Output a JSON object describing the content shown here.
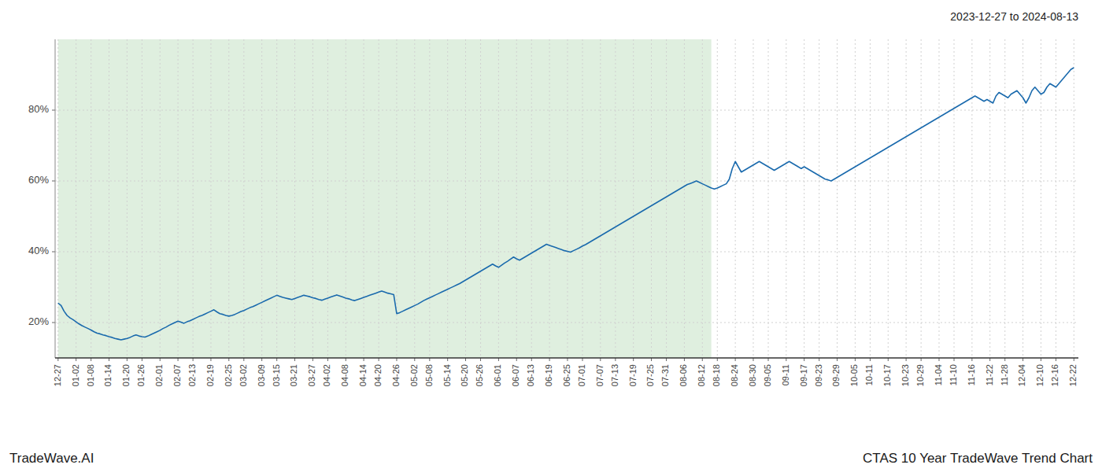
{
  "chart_data": {
    "type": "line",
    "title": "CTAS 10 Year TradeWave Trend Chart",
    "subtitle": "2023-12-27 to 2024-08-13",
    "annotations": [
      "TradeWave.AI"
    ],
    "color": "#1a6aad",
    "grid": true,
    "ylim": [
      10,
      100
    ],
    "yticks": [
      {
        "value": 20,
        "label": "20%"
      },
      {
        "value": 40,
        "label": "40%"
      },
      {
        "value": 60,
        "label": "60%"
      },
      {
        "value": 80,
        "label": "80%"
      }
    ],
    "shade": {
      "from": 0,
      "to": 218,
      "color": "#d4ead4"
    },
    "categories": [
      "12-27",
      null,
      null,
      null,
      null,
      null,
      "01-02",
      null,
      null,
      null,
      null,
      "01-08",
      null,
      null,
      null,
      null,
      null,
      "01-14",
      null,
      null,
      null,
      null,
      null,
      "01-20",
      null,
      null,
      null,
      null,
      "01-26",
      null,
      null,
      null,
      null,
      null,
      "02-01",
      null,
      null,
      null,
      null,
      null,
      "02-07",
      null,
      null,
      null,
      null,
      "02-13",
      null,
      null,
      null,
      null,
      null,
      "02-19",
      null,
      null,
      null,
      null,
      null,
      "02-25",
      null,
      null,
      null,
      null,
      "03-02",
      null,
      null,
      null,
      null,
      null,
      "03-09",
      null,
      null,
      null,
      null,
      "03-15",
      null,
      null,
      null,
      null,
      null,
      "03-21",
      null,
      null,
      null,
      null,
      null,
      "03-27",
      null,
      null,
      null,
      null,
      "04-02",
      null,
      null,
      null,
      null,
      null,
      "04-08",
      null,
      null,
      null,
      null,
      null,
      "04-14",
      null,
      null,
      null,
      null,
      "04-20",
      null,
      null,
      null,
      null,
      null,
      "04-26",
      null,
      null,
      null,
      null,
      null,
      "05-02",
      null,
      null,
      null,
      null,
      "05-08",
      null,
      null,
      null,
      null,
      null,
      "05-14",
      null,
      null,
      null,
      null,
      null,
      "05-20",
      null,
      null,
      null,
      null,
      "05-26",
      null,
      null,
      null,
      null,
      null,
      "06-01",
      null,
      null,
      null,
      null,
      null,
      "06-07",
      null,
      null,
      null,
      null,
      "06-13",
      null,
      null,
      null,
      null,
      null,
      "06-19",
      null,
      null,
      null,
      null,
      null,
      "06-25",
      null,
      null,
      null,
      null,
      "07-01",
      null,
      null,
      null,
      null,
      null,
      "07-07",
      null,
      null,
      null,
      null,
      "07-13",
      null,
      null,
      null,
      null,
      null,
      "07-19",
      null,
      null,
      null,
      null,
      null,
      "07-25",
      null,
      null,
      null,
      null,
      "07-31",
      null,
      null,
      null,
      null,
      null,
      "08-06",
      null,
      null,
      null,
      null,
      null,
      "08-12",
      null,
      null,
      null,
      null,
      "08-18",
      null,
      null,
      null,
      null,
      null,
      "08-24",
      null,
      null,
      null,
      null,
      null,
      "08-30",
      null,
      null,
      null,
      null,
      "09-05",
      null,
      null,
      null,
      null,
      null,
      "09-11",
      null,
      null,
      null,
      null,
      null,
      "09-17",
      null,
      null,
      null,
      null,
      "09-23",
      null,
      null,
      null,
      null,
      null,
      "09-29",
      null,
      null,
      null,
      null,
      null,
      "10-05",
      null,
      null,
      null,
      null,
      "10-11",
      null,
      null,
      null,
      null,
      null,
      "10-17",
      null,
      null,
      null,
      null,
      null,
      "10-23",
      null,
      null,
      null,
      null,
      "10-29",
      null,
      null,
      null,
      null,
      null,
      "11-04",
      null,
      null,
      null,
      null,
      "11-10",
      null,
      null,
      null,
      null,
      null,
      "11-16",
      null,
      null,
      null,
      null,
      null,
      "11-22",
      null,
      null,
      null,
      null,
      "11-28",
      null,
      null,
      null,
      null,
      null,
      "12-04",
      null,
      null,
      null,
      null,
      null,
      "12-10",
      null,
      null,
      null,
      null,
      "12-16",
      null,
      null,
      null,
      null,
      null,
      "12-22"
    ],
    "values": [
      25.5,
      24.8,
      23.2,
      22.0,
      21.3,
      20.8,
      20.2,
      19.6,
      19.1,
      18.7,
      18.3,
      17.9,
      17.4,
      17.0,
      16.8,
      16.5,
      16.3,
      16.0,
      15.8,
      15.5,
      15.3,
      15.1,
      15.3,
      15.5,
      15.8,
      16.2,
      16.5,
      16.2,
      16.0,
      15.9,
      16.2,
      16.6,
      17.0,
      17.4,
      17.8,
      18.3,
      18.7,
      19.2,
      19.6,
      20.0,
      20.4,
      20.1,
      19.8,
      20.2,
      20.5,
      20.9,
      21.3,
      21.7,
      22.0,
      22.4,
      22.8,
      23.2,
      23.6,
      23.0,
      22.5,
      22.3,
      22.0,
      21.8,
      22.0,
      22.3,
      22.7,
      23.1,
      23.4,
      23.8,
      24.2,
      24.5,
      24.9,
      25.3,
      25.7,
      26.1,
      26.5,
      26.9,
      27.3,
      27.7,
      27.4,
      27.1,
      26.9,
      26.7,
      26.5,
      26.8,
      27.1,
      27.4,
      27.7,
      27.5,
      27.3,
      27.0,
      26.8,
      26.5,
      26.3,
      26.6,
      26.9,
      27.2,
      27.5,
      27.8,
      27.5,
      27.2,
      26.9,
      26.7,
      26.4,
      26.2,
      26.5,
      26.8,
      27.1,
      27.4,
      27.7,
      28.0,
      28.3,
      28.6,
      28.9,
      28.6,
      28.3,
      28.1,
      27.9,
      22.5,
      22.8,
      23.2,
      23.6,
      24.0,
      24.4,
      24.8,
      25.2,
      25.7,
      26.2,
      26.6,
      27.0,
      27.4,
      27.8,
      28.2,
      28.6,
      29.0,
      29.4,
      29.8,
      30.2,
      30.6,
      31.0,
      31.5,
      32.0,
      32.5,
      33.0,
      33.5,
      34.0,
      34.5,
      35.0,
      35.5,
      36.0,
      36.5,
      36.0,
      35.6,
      36.2,
      36.8,
      37.3,
      37.9,
      38.5,
      38.0,
      37.6,
      38.1,
      38.6,
      39.1,
      39.6,
      40.1,
      40.6,
      41.1,
      41.6,
      42.1,
      41.8,
      41.5,
      41.2,
      40.9,
      40.6,
      40.3,
      40.1,
      39.9,
      40.3,
      40.7,
      41.1,
      41.6,
      42.0,
      42.5,
      43.0,
      43.5,
      44.0,
      44.5,
      45.0,
      45.5,
      46.0,
      46.5,
      47.0,
      47.5,
      48.0,
      48.5,
      49.0,
      49.5,
      50.0,
      50.5,
      51.0,
      51.5,
      52.0,
      52.5,
      53.0,
      53.5,
      54.0,
      54.5,
      55.0,
      55.5,
      56.0,
      56.5,
      57.0,
      57.5,
      58.0,
      58.5,
      59.0,
      59.3,
      59.6,
      60.0,
      59.6,
      59.2,
      58.8,
      58.4,
      58.0,
      57.7,
      58.0,
      58.4,
      58.8,
      59.2,
      60.5,
      63.5,
      65.5,
      64.0,
      62.5,
      63.0,
      63.5,
      64.0,
      64.5,
      65.0,
      65.5,
      65.0,
      64.5,
      64.0,
      63.5,
      63.0,
      63.5,
      64.0,
      64.5,
      65.0,
      65.5,
      65.0,
      64.5,
      64.0,
      63.5,
      64.0,
      63.5,
      63.0,
      62.5,
      62.0,
      61.5,
      61.0,
      60.5,
      60.3,
      60.0,
      60.5,
      61.0,
      61.5,
      62.0,
      62.5,
      63.0,
      63.5,
      64.0,
      64.5,
      65.0,
      65.5,
      66.0,
      66.5,
      67.0,
      67.5,
      68.0,
      68.5,
      69.0,
      69.5,
      70.0,
      70.5,
      71.0,
      71.5,
      72.0,
      72.5,
      73.0,
      73.5,
      74.0,
      74.5,
      75.0,
      75.5,
      76.0,
      76.5,
      77.0,
      77.5,
      78.0,
      78.5,
      79.0,
      79.5,
      80.0,
      80.5,
      81.0,
      81.5,
      82.0,
      82.5,
      83.0,
      83.5,
      84.0,
      83.5,
      83.0,
      82.5,
      83.0,
      82.5,
      82.0,
      84.0,
      85.0,
      84.5,
      84.0,
      83.5,
      84.5,
      85.0,
      85.5,
      84.5,
      83.5,
      82.0,
      83.5,
      85.5,
      86.5,
      85.5,
      84.5,
      85.0,
      86.5,
      87.5,
      87.0,
      86.5,
      87.5,
      88.5,
      89.5,
      90.5,
      91.5,
      92.0
    ]
  }
}
